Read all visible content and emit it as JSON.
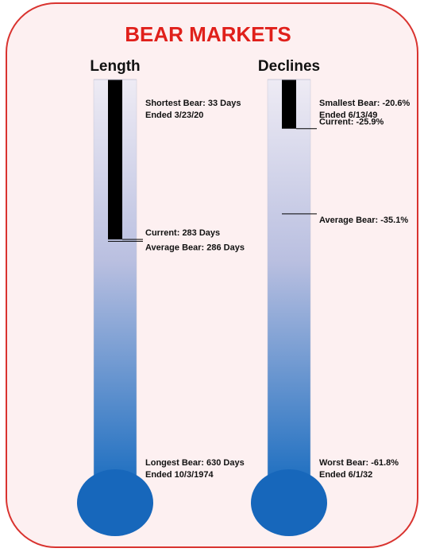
{
  "chart_data": {
    "type": "thermometer",
    "title": "BEAR MARKETS",
    "panels": [
      {
        "title": "Length",
        "shortest": {
          "label": "Shortest Bear: 33 Days",
          "sublabel": "Ended 3/23/20",
          "value": 33
        },
        "current": {
          "label": "Current: 283 Days",
          "value": 283
        },
        "average": {
          "label": "Average Bear: 286 Days",
          "value": 286
        },
        "longest": {
          "label": "Longest Bear: 630 Days",
          "sublabel": "Ended 10/3/1974",
          "value": 630
        }
      },
      {
        "title": "Declines",
        "shortest": {
          "label": "Smallest Bear: -20.6%",
          "sublabel": "Ended 6/13/49",
          "value": -20.6
        },
        "current": {
          "label": "Current: -25.9%",
          "value": -25.9
        },
        "average": {
          "label": "Average Bear: -35.1%",
          "value": -35.1
        },
        "longest": {
          "label": "Worst Bear: -61.8%",
          "sublabel": "Ended 6/1/32",
          "value": -61.8
        }
      }
    ]
  }
}
